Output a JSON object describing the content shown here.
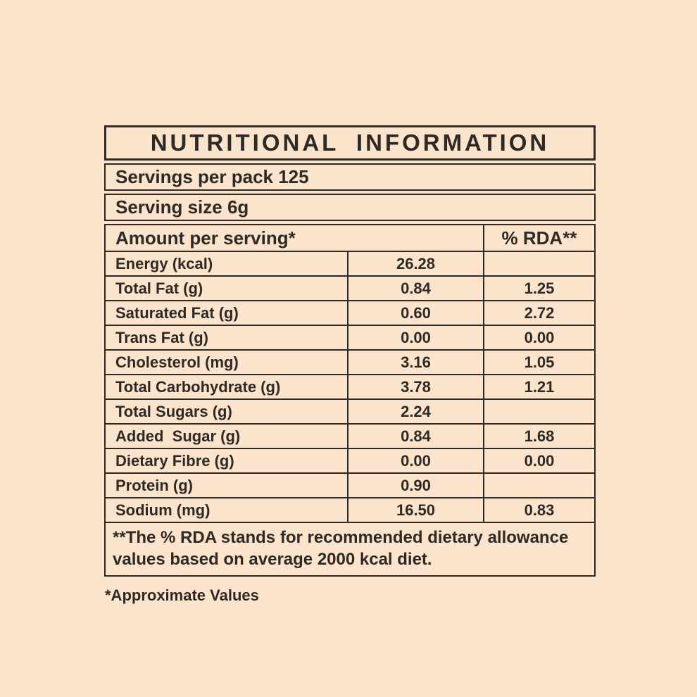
{
  "page": {
    "background_color": "#fce4cc",
    "ink_color": "#2d2a26"
  },
  "label": {
    "title": "NUTRITIONAL INFORMATION",
    "servings_per_pack": "Servings per pack 125",
    "serving_size": "Serving size 6g",
    "columns": {
      "amount_header": "Amount per serving*",
      "rda_header": "% RDA**"
    },
    "rows": [
      {
        "name": "Energy (kcal)",
        "amount": "26.28",
        "rda": ""
      },
      {
        "name": "Total Fat (g)",
        "amount": "0.84",
        "rda": "1.25"
      },
      {
        "name": "Saturated Fat (g)",
        "amount": "0.60",
        "rda": "2.72"
      },
      {
        "name": "Trans Fat (g)",
        "amount": "0.00",
        "rda": "0.00"
      },
      {
        "name": "Cholesterol (mg)",
        "amount": "3.16",
        "rda": "1.05"
      },
      {
        "name": "Total Carbohydrate (g)",
        "amount": "3.78",
        "rda": "1.21"
      },
      {
        "name": "Total Sugars (g)",
        "amount": "2.24",
        "rda": ""
      },
      {
        "name": "Added  Sugar (g)",
        "amount": "0.84",
        "rda": "1.68"
      },
      {
        "name": "Dietary Fibre (g)",
        "amount": "0.00",
        "rda": "0.00"
      },
      {
        "name": "Protein (g)",
        "amount": "0.90",
        "rda": ""
      },
      {
        "name": "Sodium (mg)",
        "amount": "16.50",
        "rda": "0.83"
      }
    ],
    "footnote": "**The % RDA stands for recommended dietary allowance values based on average 2000 kcal diet.",
    "approximate_note": "*Approximate Values"
  }
}
